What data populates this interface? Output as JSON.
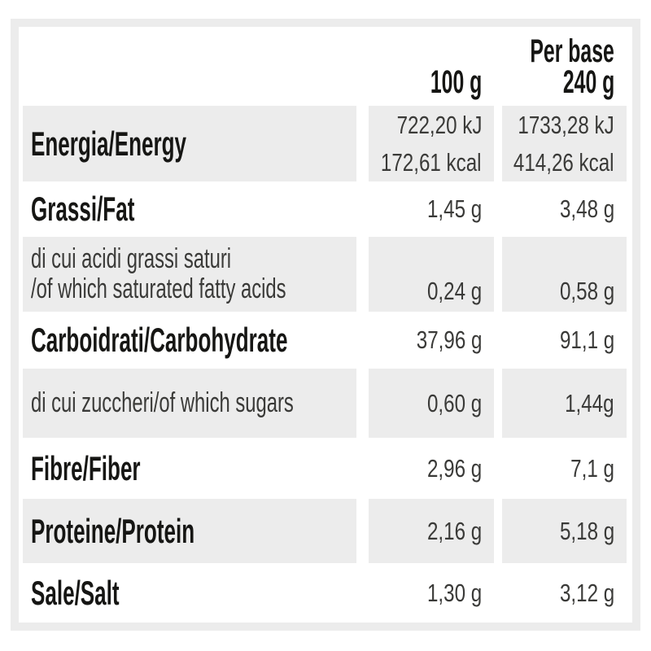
{
  "table": {
    "header": {
      "col_100g": "100 g",
      "col_base_line1": "Per base",
      "col_base_line2": "240 g"
    },
    "rows": [
      {
        "name": "energy",
        "sub": false,
        "label_lines": [
          "Energia/Energy"
        ],
        "values_100g": [
          "722,20 kJ",
          "172,61 kcal"
        ],
        "values_base": [
          "1733,28 kJ",
          "414,26 kcal"
        ]
      },
      {
        "name": "fat",
        "sub": false,
        "label_lines": [
          "Grassi/Fat"
        ],
        "values_100g": [
          "1,45 g"
        ],
        "values_base": [
          "3,48 g"
        ]
      },
      {
        "name": "saturated-fat",
        "sub": true,
        "label_lines": [
          "di cui acidi grassi saturi",
          "/of which saturated fatty acids"
        ],
        "values_100g": [
          "0,24 g"
        ],
        "values_base": [
          "0,58 g"
        ]
      },
      {
        "name": "carbohydrate",
        "sub": false,
        "label_lines": [
          "Carboidrati/Carbohydrate"
        ],
        "values_100g": [
          "37,96 g"
        ],
        "values_base": [
          "91,1 g"
        ]
      },
      {
        "name": "sugars",
        "sub": true,
        "label_lines": [
          "di cui zuccheri/of which sugars"
        ],
        "values_100g": [
          "0,60 g"
        ],
        "values_base": [
          "1,44g"
        ]
      },
      {
        "name": "fiber",
        "sub": false,
        "label_lines": [
          "Fibre/Fiber"
        ],
        "values_100g": [
          "2,96 g"
        ],
        "values_base": [
          "7,1 g"
        ]
      },
      {
        "name": "protein",
        "sub": false,
        "label_lines": [
          "Proteine/Protein"
        ],
        "values_100g": [
          "2,16 g"
        ],
        "values_base": [
          "5,18 g"
        ]
      },
      {
        "name": "salt",
        "sub": false,
        "label_lines": [
          "Sale/Salt"
        ],
        "values_100g": [
          "1,30 g"
        ],
        "values_base": [
          "3,12 g"
        ]
      }
    ],
    "colors": {
      "shade": "#ececec",
      "label_text": "#161614",
      "value_text": "#3a3a38"
    }
  }
}
